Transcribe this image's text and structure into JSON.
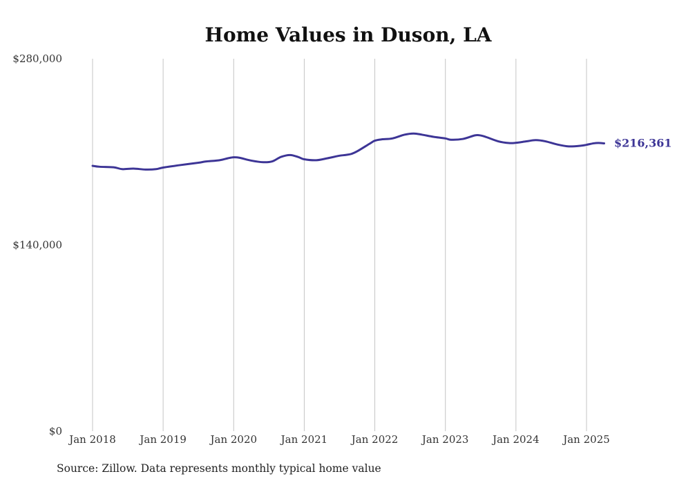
{
  "chart_data": {
    "type": "line",
    "title": "Home Values in Duson, LA",
    "xlabel": "",
    "ylabel": "",
    "ylim": [
      0,
      280000
    ],
    "y_ticks": [
      {
        "value": 0,
        "label": "$0"
      },
      {
        "value": 140000,
        "label": "$140,000"
      },
      {
        "value": 280000,
        "label": "$280,000"
      }
    ],
    "x_ticks": [
      {
        "value": 2018.0,
        "label": "Jan 2018"
      },
      {
        "value": 2019.0,
        "label": "Jan 2019"
      },
      {
        "value": 2020.0,
        "label": "Jan 2020"
      },
      {
        "value": 2021.0,
        "label": "Jan 2021"
      },
      {
        "value": 2022.0,
        "label": "Jan 2022"
      },
      {
        "value": 2023.0,
        "label": "Jan 2023"
      },
      {
        "value": 2024.0,
        "label": "Jan 2024"
      },
      {
        "value": 2025.0,
        "label": "Jan 2025"
      }
    ],
    "grid": "vertical",
    "series": [
      {
        "color": "#3d3596",
        "points": [
          [
            2018.0,
            199500
          ],
          [
            2018.1,
            198800
          ],
          [
            2018.3,
            198400
          ],
          [
            2018.42,
            197000
          ],
          [
            2018.58,
            197400
          ],
          [
            2018.75,
            196700
          ],
          [
            2018.9,
            197000
          ],
          [
            2019.0,
            198200
          ],
          [
            2019.25,
            200100
          ],
          [
            2019.5,
            201800
          ],
          [
            2019.6,
            202700
          ],
          [
            2019.8,
            203700
          ],
          [
            2019.92,
            205200
          ],
          [
            2020.0,
            205900
          ],
          [
            2020.08,
            205600
          ],
          [
            2020.25,
            203400
          ],
          [
            2020.42,
            202200
          ],
          [
            2020.55,
            202900
          ],
          [
            2020.67,
            206200
          ],
          [
            2020.8,
            207600
          ],
          [
            2020.92,
            206000
          ],
          [
            2021.0,
            204400
          ],
          [
            2021.17,
            203700
          ],
          [
            2021.33,
            205200
          ],
          [
            2021.5,
            207100
          ],
          [
            2021.58,
            207600
          ],
          [
            2021.67,
            208500
          ],
          [
            2021.75,
            210400
          ],
          [
            2021.92,
            215900
          ],
          [
            2022.0,
            218400
          ],
          [
            2022.1,
            219400
          ],
          [
            2022.25,
            220100
          ],
          [
            2022.42,
            222900
          ],
          [
            2022.55,
            223800
          ],
          [
            2022.67,
            222900
          ],
          [
            2022.83,
            221300
          ],
          [
            2023.0,
            220100
          ],
          [
            2023.08,
            219100
          ],
          [
            2023.25,
            219700
          ],
          [
            2023.42,
            222400
          ],
          [
            2023.5,
            222300
          ],
          [
            2023.58,
            221100
          ],
          [
            2023.75,
            217900
          ],
          [
            2023.9,
            216600
          ],
          [
            2024.0,
            216800
          ],
          [
            2024.15,
            217900
          ],
          [
            2024.28,
            218800
          ],
          [
            2024.42,
            217900
          ],
          [
            2024.58,
            215600
          ],
          [
            2024.75,
            214100
          ],
          [
            2024.92,
            214600
          ],
          [
            2025.0,
            215300
          ],
          [
            2025.1,
            216400
          ],
          [
            2025.17,
            216700
          ],
          [
            2025.25,
            216361
          ]
        ],
        "last_label": "$216,361"
      }
    ]
  },
  "footer": {
    "source": "Source: Zillow. Data represents monthly typical home value"
  }
}
